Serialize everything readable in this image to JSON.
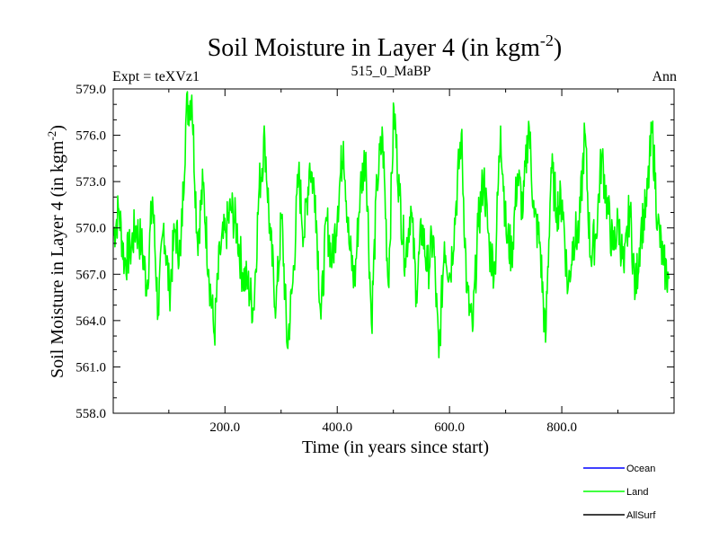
{
  "chart_data": {
    "type": "line",
    "title_main": "Soil Moisture in Layer 4 (in kgm",
    "title_sup": "-2",
    "title_close": ")",
    "subtitle_left": "Expt = teXVz1",
    "subtitle_center": "515_0_MaBP",
    "subtitle_right": "Ann",
    "xlabel": "Time (in years since start)",
    "ylabel_main": "Soil Moisture in Layer 4 (in kgm",
    "ylabel_sup": "-2",
    "ylabel_close": ")",
    "xlim": [
      1,
      1000
    ],
    "ylim": [
      558.0,
      579.0
    ],
    "x_ticks": [
      200.0,
      400.0,
      600.0,
      800.0
    ],
    "x_tick_labels": [
      "200.0",
      "400.0",
      "600.0",
      "800.0"
    ],
    "y_ticks": [
      558.0,
      561.0,
      564.0,
      567.0,
      570.0,
      573.0,
      576.0,
      579.0
    ],
    "y_tick_labels": [
      "558.0",
      "561.0",
      "564.0",
      "567.0",
      "570.0",
      "573.0",
      "576.0",
      "579.0"
    ],
    "legend_position": "bottom-right, outside plot",
    "series": [
      {
        "name": "Ocean",
        "color": "#0000ff",
        "values": []
      },
      {
        "name": "Land",
        "color": "#00ff00",
        "x_start": 1,
        "x_step": 10,
        "values": [
          569.5,
          571.2,
          567.8,
          568.5,
          570.1,
          569.0,
          566.2,
          572.0,
          564.5,
          570.3,
          565.8,
          569.9,
          568.2,
          577.5,
          578.6,
          569.1,
          572.8,
          567.3,
          563.1,
          568.4,
          569.7,
          571.3,
          570.0,
          567.1,
          566.3,
          564.7,
          572.6,
          575.8,
          569.2,
          564.9,
          570.8,
          562.3,
          566.5,
          573.5,
          569.4,
          574.2,
          572.1,
          564.1,
          570.5,
          567.8,
          571.4,
          575.6,
          569.0,
          566.4,
          572.5,
          574.9,
          563.8,
          573.0,
          575.9,
          566.3,
          577.8,
          572.1,
          568.0,
          571.4,
          565.9,
          570.2,
          567.2,
          569.5,
          561.6,
          569.1,
          566.9,
          571.2,
          576.1,
          565.8,
          563.3,
          570.1,
          573.4,
          568.6,
          567.3,
          576.6,
          569.6,
          568.3,
          573.5,
          571.1,
          576.9,
          570.7,
          569.1,
          562.6,
          573.9,
          571.3,
          571.8,
          566.0,
          569.4,
          569.8,
          576.2,
          568.2,
          569.6,
          574.7,
          571.5,
          568.6,
          570.4,
          567.1,
          571.4,
          565.8,
          569.9,
          571.4,
          576.4,
          570.3,
          567.6,
          566.7
        ]
      },
      {
        "name": "AllSurf",
        "color": "#000000",
        "values": []
      }
    ]
  }
}
